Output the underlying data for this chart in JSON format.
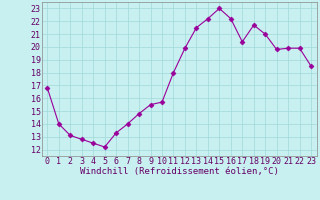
{
  "x": [
    0,
    1,
    2,
    3,
    4,
    5,
    6,
    7,
    8,
    9,
    10,
    11,
    12,
    13,
    14,
    15,
    16,
    17,
    18,
    19,
    20,
    21,
    22,
    23
  ],
  "y": [
    16.8,
    14.0,
    13.1,
    12.8,
    12.5,
    12.2,
    13.3,
    14.0,
    14.8,
    15.5,
    15.7,
    18.0,
    19.9,
    21.5,
    22.2,
    23.0,
    22.2,
    20.4,
    21.7,
    21.0,
    19.8,
    19.9,
    19.9,
    18.5
  ],
  "line_color": "#990099",
  "marker": "D",
  "markersize": 2.5,
  "xlabel": "Windchill (Refroidissement éolien,°C)",
  "ylabel_ticks": [
    12,
    13,
    14,
    15,
    16,
    17,
    18,
    19,
    20,
    21,
    22,
    23
  ],
  "xlim": [
    -0.5,
    23.5
  ],
  "ylim": [
    11.5,
    23.5
  ],
  "bg_color": "#c8f0f0",
  "grid_color": "#a0d8d8",
  "xlabel_fontsize": 6.5,
  "tick_fontsize": 6.0
}
